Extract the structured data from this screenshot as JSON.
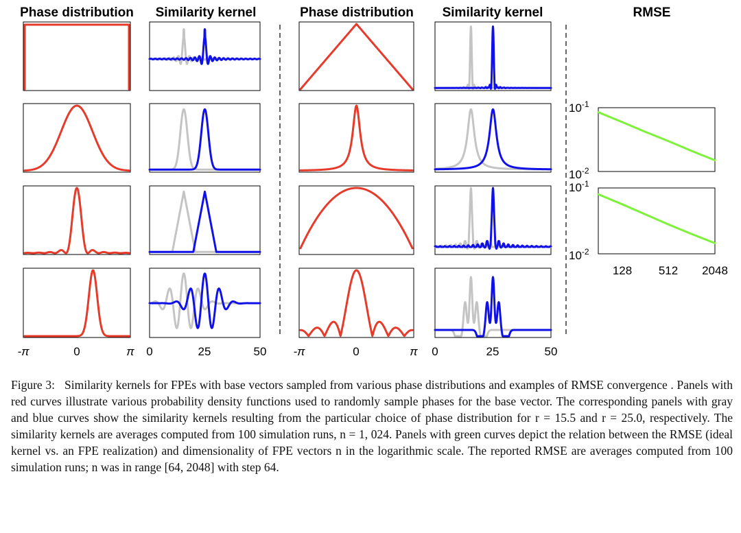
{
  "figure": {
    "columns": [
      {
        "title": "Phase distribution",
        "kind": "phase"
      },
      {
        "title": "Similarity kernel",
        "kind": "kernel"
      },
      {
        "title": "Phase distribution",
        "kind": "phase"
      },
      {
        "title": "Similarity kernel",
        "kind": "kernel"
      },
      {
        "title": "RMSE",
        "kind": "rmse"
      }
    ],
    "phase_panels_left": [
      {
        "shape": "uniform"
      },
      {
        "shape": "gaussian"
      },
      {
        "shape": "sinc-squared"
      },
      {
        "shape": "shifted-narrow"
      }
    ],
    "kernel_panels_left": [
      {
        "shape": "sinc-oscillating"
      },
      {
        "shape": "gaussian-like"
      },
      {
        "shape": "triangular"
      },
      {
        "shape": "oscillating"
      }
    ],
    "phase_panels_right": [
      {
        "shape": "triangular"
      },
      {
        "shape": "cauchy-like"
      },
      {
        "shape": "semicircle"
      },
      {
        "shape": "sinc-absolute"
      }
    ],
    "kernel_panels_right": [
      {
        "shape": "sharp-peak"
      },
      {
        "shape": "cauchy-like"
      },
      {
        "shape": "sinc-peak"
      },
      {
        "shape": "double-peak"
      }
    ],
    "phase_axis": {
      "ticks": [
        "-π",
        "0",
        "π"
      ]
    },
    "kernel_axis": {
      "ticks": [
        "0",
        "25",
        "50"
      ]
    },
    "rmse_axis": {
      "x_ticks": [
        "128",
        "512",
        "2048"
      ],
      "y_ticks": [
        {
          "base": "10",
          "exp": "-1"
        },
        {
          "base": "10",
          "exp": "-2"
        }
      ]
    },
    "colors": {
      "phase": "#e63a2a",
      "kernel_r155": "#c4c4c4",
      "kernel_r25": "#1010e8",
      "rmse": "#7ef23a"
    }
  },
  "chart_data": [
    {
      "type": "line",
      "title": "RMSE",
      "xlabel": "",
      "ylabel": "",
      "x_scale": "log",
      "y_scale": "log",
      "xlim": [
        64,
        2048
      ],
      "ylim": [
        0.01,
        0.1
      ],
      "x": [
        64,
        128,
        256,
        512,
        1024,
        2048
      ],
      "series": [
        {
          "values": [
            0.085,
            0.06,
            0.042,
            0.03,
            0.021,
            0.015
          ]
        }
      ]
    },
    {
      "type": "line",
      "title": "",
      "xlabel": "",
      "ylabel": "",
      "x_scale": "log",
      "y_scale": "log",
      "xlim": [
        64,
        2048
      ],
      "ylim": [
        0.01,
        0.1
      ],
      "x": [
        64,
        128,
        256,
        512,
        1024,
        2048
      ],
      "series": [
        {
          "values": [
            0.08,
            0.057,
            0.04,
            0.028,
            0.02,
            0.0145
          ]
        }
      ]
    }
  ],
  "caption": {
    "label": "Figure 3:",
    "text": "Similarity kernels for FPEs with base vectors sampled from various phase distributions and examples of RMSE convergence . Panels with red curves illustrate various probability density functions used to randomly sample phases for the base vector. The corresponding panels with gray and blue curves show the similarity kernels resulting from the particular choice of phase distribution for r = 15.5 and r = 25.0, respectively. The similarity kernels are averages computed from 100 simulation runs, n = 1, 024. Panels with green curves depict the relation between the RMSE (ideal kernel vs. an FPE realization) and dimensionality of FPE vectors n in the logarithmic scale. The reported RMSE are averages computed from 100 simulation runs; n was in range [64, 2048] with step 64."
  }
}
